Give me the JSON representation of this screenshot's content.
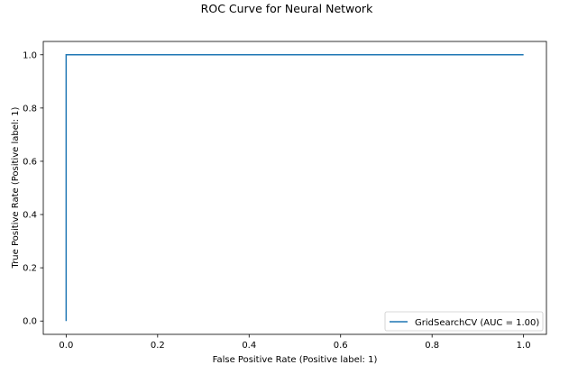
{
  "chart_data": {
    "type": "line",
    "title": "ROC Curve for Neural Network",
    "xlabel": "False Positive Rate (Positive label: 1)",
    "ylabel": "True Positive Rate (Positive label: 1)",
    "xlim": [
      -0.05,
      1.05
    ],
    "ylim": [
      -0.05,
      1.05
    ],
    "xticks": [
      0.0,
      0.2,
      0.4,
      0.6,
      0.8,
      1.0
    ],
    "yticks": [
      0.0,
      0.2,
      0.4,
      0.6,
      0.8,
      1.0
    ],
    "xtick_labels": [
      "0.0",
      "0.2",
      "0.4",
      "0.6",
      "0.8",
      "1.0"
    ],
    "ytick_labels": [
      "0.0",
      "0.2",
      "0.4",
      "0.6",
      "0.8",
      "1.0"
    ],
    "grid": false,
    "legend_position": "lower-right",
    "series": [
      {
        "name": "GridSearchCV (AUC = 1.00)",
        "color": "#1f77b4",
        "x": [
          0.0,
          0.0,
          1.0
        ],
        "y": [
          0.0,
          1.0,
          1.0
        ]
      }
    ]
  }
}
